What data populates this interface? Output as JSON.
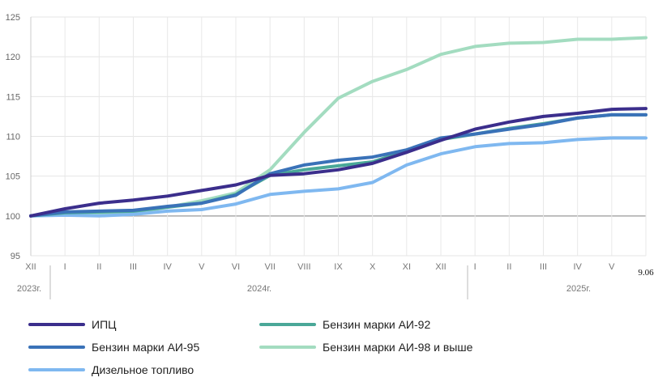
{
  "chart_data": {
    "type": "line",
    "categories": [
      "XII",
      "I",
      "II",
      "III",
      "IV",
      "V",
      "VI",
      "VII",
      "VIII",
      "IX",
      "X",
      "XI",
      "XII",
      "I",
      "II",
      "III",
      "IV",
      "V",
      "9.06"
    ],
    "year_labels": [
      "2023г.",
      "2024г.",
      "2025г."
    ],
    "ylim": [
      95,
      125
    ],
    "yticks": [
      95,
      100,
      105,
      110,
      115,
      120,
      125
    ],
    "grid": true,
    "legend_position": "bottom",
    "series": [
      {
        "name": "ИПЦ",
        "color": "#3b2e8c",
        "values": [
          100,
          100.9,
          101.6,
          102.0,
          102.5,
          103.2,
          103.9,
          105.1,
          105.3,
          105.8,
          106.6,
          108.0,
          109.5,
          110.9,
          111.8,
          112.5,
          112.9,
          113.4,
          113.5
        ]
      },
      {
        "name": "Бензин марки АИ-92",
        "color": "#4aa898",
        "values": [
          100,
          100.4,
          100.5,
          100.6,
          101.1,
          101.6,
          102.7,
          105.1,
          105.8,
          106.3,
          106.8,
          108.2,
          109.6,
          110.3,
          111.0,
          111.6,
          112.3,
          112.7,
          112.7
        ]
      },
      {
        "name": "Бензин марки АИ-95",
        "color": "#3a72b8",
        "values": [
          100,
          100.5,
          100.6,
          100.7,
          101.2,
          101.6,
          102.6,
          105.3,
          106.4,
          107.0,
          107.4,
          108.3,
          109.8,
          110.3,
          110.9,
          111.5,
          112.3,
          112.7,
          112.7
        ]
      },
      {
        "name": "Бензин марки АИ-98 и выше",
        "color": "#a3dcc0",
        "values": [
          100,
          100.2,
          100.2,
          100.4,
          101.1,
          101.9,
          102.9,
          105.8,
          110.5,
          114.8,
          116.9,
          118.4,
          120.3,
          121.3,
          121.7,
          121.8,
          122.2,
          122.2,
          122.4
        ]
      },
      {
        "name": "Дизельное топливо",
        "color": "#7fb8f0",
        "values": [
          100,
          100.1,
          100.0,
          100.2,
          100.6,
          100.8,
          101.5,
          102.7,
          103.1,
          103.4,
          104.2,
          106.4,
          107.8,
          108.7,
          109.1,
          109.2,
          109.6,
          109.8,
          109.8
        ]
      }
    ]
  }
}
